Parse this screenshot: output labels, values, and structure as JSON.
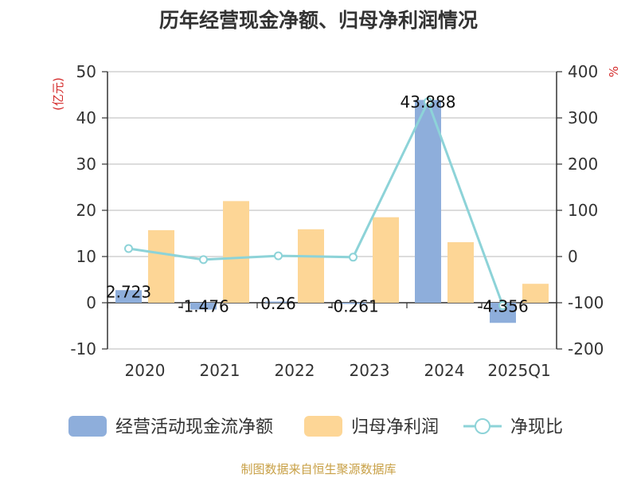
{
  "chart_data": {
    "type": "bar",
    "title": "历年经营现金净额、归母净利润情况",
    "categories": [
      "2020",
      "2021",
      "2022",
      "2023",
      "2024",
      "2025Q1"
    ],
    "left_unit": "(亿元)",
    "right_unit": "%",
    "ylim_left": [
      -10,
      50
    ],
    "yticks_left": [
      50,
      40,
      30,
      20,
      10,
      0,
      -10
    ],
    "ylim_right": [
      -200,
      400
    ],
    "yticks_right": [
      400,
      300,
      200,
      100,
      0,
      -100,
      -200
    ],
    "series": [
      {
        "name": "经营活动现金流净额",
        "kind": "bar",
        "axis": "left",
        "values": [
          2.723,
          -1.476,
          0.26,
          -0.261,
          43.888,
          -4.356
        ],
        "labels": [
          "2.723",
          "-1.476",
          "0.26",
          "-0.261",
          "43.888",
          "-4.356"
        ]
      },
      {
        "name": "归母净利润",
        "kind": "bar",
        "axis": "left",
        "values": [
          15.7,
          22.0,
          15.9,
          18.5,
          13.1,
          4.1
        ]
      },
      {
        "name": "净现比",
        "kind": "line",
        "axis": "right",
        "values": [
          17.3,
          -6.7,
          1.6,
          -1.4,
          335,
          -106.2
        ]
      }
    ],
    "source": "制图数据来自恒生聚源数据库"
  },
  "colors": {
    "cash_flow": "#8eaedb",
    "net_profit": "#fdd696",
    "ratio_line": "#8dd3d8",
    "grid": "#c8c8c8",
    "axis": "#333333",
    "unit_label": "#d42a2a",
    "source": "#c8a046"
  }
}
